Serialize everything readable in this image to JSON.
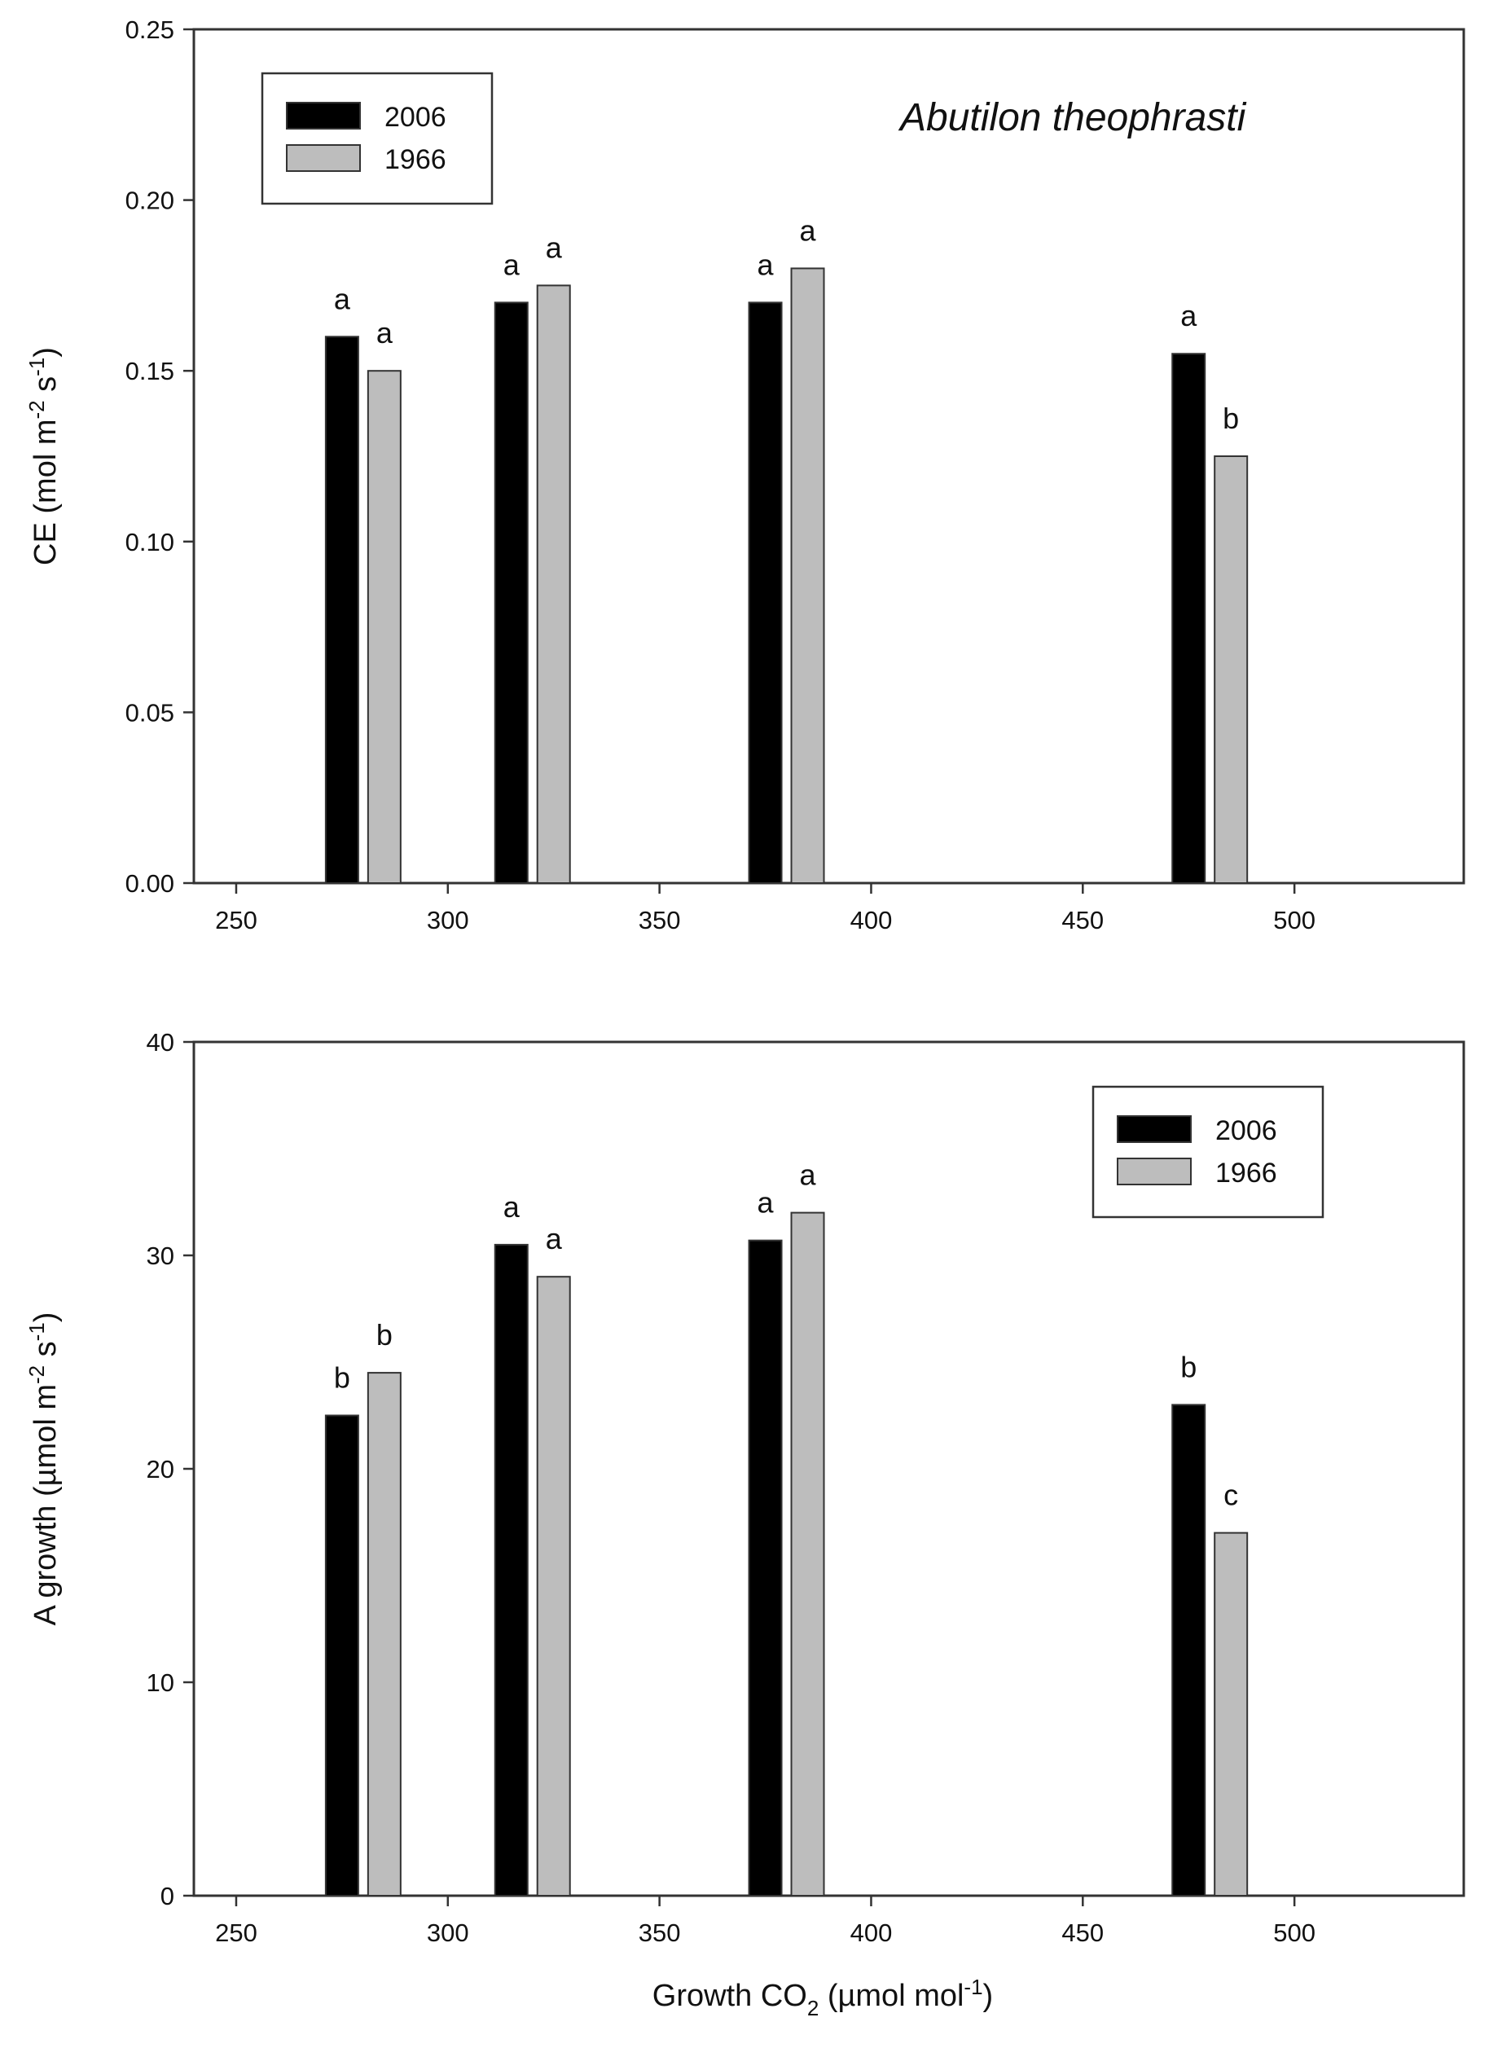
{
  "figure": {
    "species_label": "Abutilon theophrasti",
    "xlabel": {
      "main": "Growth CO",
      "sub": "2",
      "unit_open": " (µmol mol",
      "sup": "-1",
      "unit_close": ")"
    }
  },
  "colors": {
    "series_2006": "#000000",
    "series_1966": "#bdbdbd",
    "stroke": "#333333"
  },
  "chart_data": [
    {
      "type": "bar",
      "title": "",
      "xlim": [
        240,
        540
      ],
      "ylim": [
        0,
        0.25
      ],
      "xticks": [
        250,
        300,
        350,
        400,
        450,
        500
      ],
      "yticks": [
        0,
        0.05,
        0.1,
        0.15,
        0.2,
        0.25
      ],
      "ytick_labels": [
        "0.00",
        "0.05",
        "0.10",
        "0.15",
        "0.20",
        "0.25"
      ],
      "xtick_labels": [
        "250",
        "300",
        "350",
        "400",
        "450",
        "500"
      ],
      "ylabel": {
        "main": "CE (mol m",
        "sup1": "-2",
        "mid": " s",
        "sup2": "-1",
        "end": ")"
      },
      "legend": {
        "position": "top-left",
        "entries": [
          "2006",
          "1966"
        ]
      },
      "series": [
        {
          "name": "2006",
          "x": [
            275,
            315,
            375,
            475
          ],
          "values": [
            0.16,
            0.17,
            0.17,
            0.155
          ],
          "labels": [
            "a",
            "a",
            "a",
            "a"
          ]
        },
        {
          "name": "1966",
          "x": [
            285,
            325,
            385,
            485
          ],
          "values": [
            0.15,
            0.175,
            0.18,
            0.125
          ],
          "labels": [
            "a",
            "a",
            "a",
            "b"
          ]
        }
      ]
    },
    {
      "type": "bar",
      "title": "",
      "xlim": [
        240,
        540
      ],
      "ylim": [
        0,
        40
      ],
      "xticks": [
        250,
        300,
        350,
        400,
        450,
        500
      ],
      "yticks": [
        0,
        10,
        20,
        30,
        40
      ],
      "ytick_labels": [
        "0",
        "10",
        "20",
        "30",
        "40"
      ],
      "xtick_labels": [
        "250",
        "300",
        "350",
        "400",
        "450",
        "500"
      ],
      "ylabel": {
        "main": "A growth (µmol m",
        "sup1": "-2",
        "mid": " s",
        "sup2": "-1",
        "end": ")"
      },
      "legend": {
        "position": "top-right",
        "entries": [
          "2006",
          "1966"
        ]
      },
      "series": [
        {
          "name": "2006",
          "x": [
            275,
            315,
            375,
            475
          ],
          "values": [
            22.5,
            30.5,
            30.7,
            23.0
          ],
          "labels": [
            "b",
            "a",
            "a",
            "b"
          ]
        },
        {
          "name": "1966",
          "x": [
            285,
            325,
            385,
            485
          ],
          "values": [
            24.5,
            29.0,
            32.0,
            17.0
          ],
          "labels": [
            "b",
            "a",
            "a",
            "c"
          ]
        }
      ]
    }
  ]
}
